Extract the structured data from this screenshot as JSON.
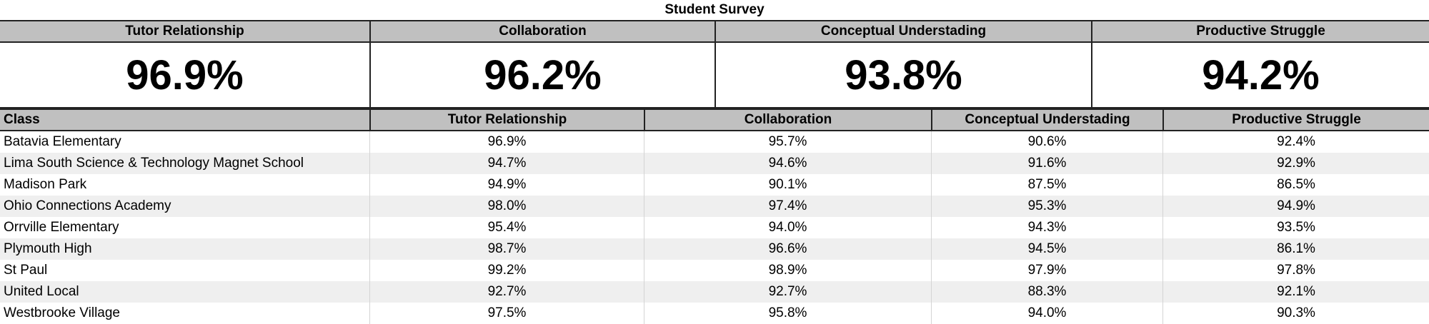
{
  "title": "Student Survey",
  "summary": [
    {
      "label": "Tutor Relationship",
      "value": "96.9%"
    },
    {
      "label": "Collaboration",
      "value": "96.2%"
    },
    {
      "label": "Conceptual Understading",
      "value": "93.8%"
    },
    {
      "label": "Productive Struggle",
      "value": "94.2%"
    }
  ],
  "table": {
    "headers": [
      "Class",
      "Tutor Relationship",
      "Collaboration",
      "Conceptual Understading",
      "Productive Struggle"
    ],
    "rows": [
      [
        "Batavia Elementary",
        "96.9%",
        "95.7%",
        "90.6%",
        "92.4%"
      ],
      [
        "Lima South Science & Technology Magnet School",
        "94.7%",
        "94.6%",
        "91.6%",
        "92.9%"
      ],
      [
        "Madison Park",
        "94.9%",
        "90.1%",
        "87.5%",
        "86.5%"
      ],
      [
        "Ohio Connections Academy",
        "98.0%",
        "97.4%",
        "95.3%",
        "94.9%"
      ],
      [
        "Orrville Elementary",
        "95.4%",
        "94.0%",
        "94.3%",
        "93.5%"
      ],
      [
        "Plymouth High",
        "98.7%",
        "96.6%",
        "94.5%",
        "86.1%"
      ],
      [
        "St Paul",
        "99.2%",
        "98.9%",
        "97.9%",
        "97.8%"
      ],
      [
        "United Local",
        "92.7%",
        "92.7%",
        "88.3%",
        "92.1%"
      ],
      [
        "Westbrooke Village",
        "97.5%",
        "95.8%",
        "94.0%",
        "90.3%"
      ]
    ]
  }
}
